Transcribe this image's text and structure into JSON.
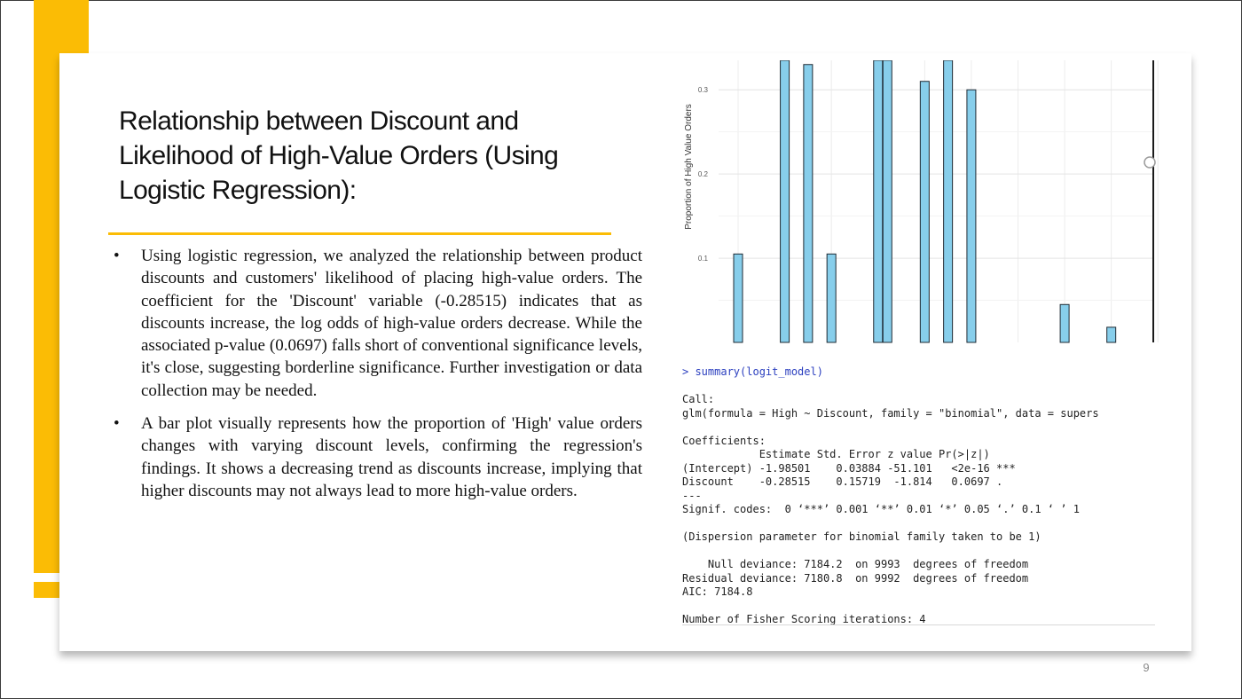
{
  "slide": {
    "title": "Relationship between Discount and Likelihood of High-Value Orders (Using Logistic Regression):",
    "bullets": [
      "Using logistic regression, we analyzed the relationship between product discounts and customers' likelihood of placing high-value orders. The coefficient for the 'Discount' variable (-0.28515) indicates that as discounts increase, the log odds of high-value orders decrease. While the associated p-value (0.0697) falls short of conventional significance levels, it's close, suggesting borderline significance. Further investigation or data collection may be needed.",
      "A bar plot visually represents how the proportion of 'High' value orders changes with varying discount levels, confirming the regression's findings. It shows a decreasing trend as discounts increase, implying that higher discounts may not always lead to more high-value orders."
    ],
    "bullet_symbol": "•",
    "page_number": "9",
    "accent_color": "#fbbc05"
  },
  "chart_data": {
    "type": "bar",
    "ylabel": "Proportion of High Value Orders",
    "xlabel": "",
    "title": "",
    "y_ticks": [
      "0.1",
      "0.2",
      "0.3"
    ],
    "ylim": [
      0.0,
      0.335
    ],
    "x": [
      0.0,
      0.1,
      0.15,
      0.2,
      0.3,
      0.32,
      0.4,
      0.45,
      0.5,
      0.7,
      0.8
    ],
    "values": [
      0.105,
      0.335,
      0.33,
      0.105,
      0.335,
      0.335,
      0.31,
      0.335,
      0.3,
      0.045,
      0.018
    ],
    "bar_color": "#87ceeb",
    "grid": true,
    "cropped": true
  },
  "console": {
    "lines": [
      {
        "text": "> summary(logit_model)",
        "style": "cmd"
      },
      {
        "text": "",
        "style": "gap"
      },
      {
        "text": "Call:",
        "style": ""
      },
      {
        "text": "glm(formula = High ~ Discount, family = \"binomial\", data = supers",
        "style": ""
      },
      {
        "text": "",
        "style": "gap"
      },
      {
        "text": "Coefficients:",
        "style": ""
      },
      {
        "text": "            Estimate Std. Error z value Pr(>|z|)",
        "style": ""
      },
      {
        "text": "(Intercept) -1.98501    0.03884 -51.101   <2e-16 ***",
        "style": ""
      },
      {
        "text": "Discount    -0.28515    0.15719  -1.814   0.0697 .",
        "style": ""
      },
      {
        "text": "---",
        "style": ""
      },
      {
        "text": "Signif. codes:  0 ‘***’ 0.001 ‘**’ 0.01 ‘*’ 0.05 ‘.’ 0.1 ‘ ’ 1",
        "style": ""
      },
      {
        "text": "",
        "style": "gap"
      },
      {
        "text": "(Dispersion parameter for binomial family taken to be 1)",
        "style": ""
      },
      {
        "text": "",
        "style": "gap"
      },
      {
        "text": "    Null deviance: 7184.2  on 9993  degrees of freedom",
        "style": ""
      },
      {
        "text": "Residual deviance: 7180.8  on 9992  degrees of freedom",
        "style": ""
      },
      {
        "text": "AIC: 7184.8",
        "style": ""
      },
      {
        "text": "",
        "style": "gap"
      },
      {
        "text": "Number of Fisher Scoring iterations: 4",
        "style": ""
      }
    ]
  }
}
